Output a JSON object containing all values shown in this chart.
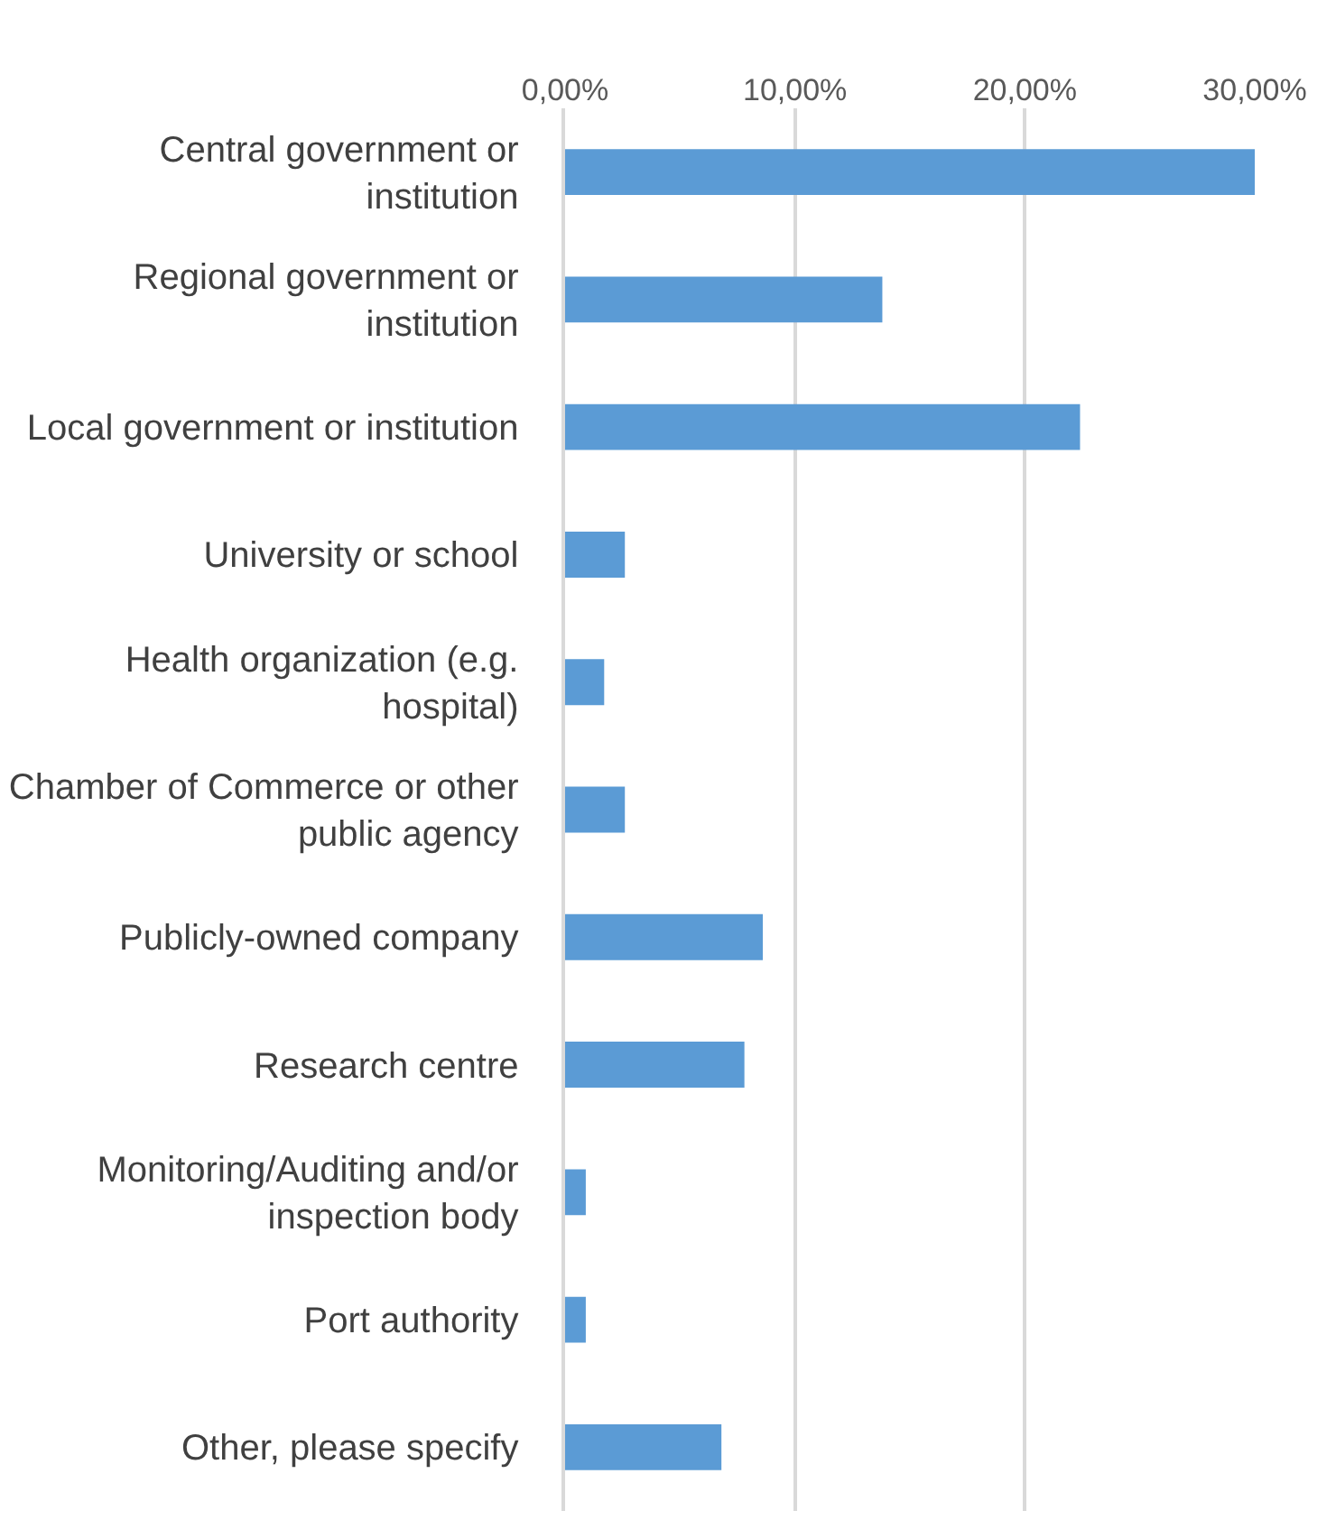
{
  "chart_data": {
    "type": "bar",
    "orientation": "horizontal",
    "categories": [
      "Central government or institution",
      "Regional government or institution",
      "Local government or institution",
      "University or school",
      "Health organization (e.g. hospital)",
      "Chamber of Commerce or other public agency",
      "Publicly-owned company",
      "Research centre",
      "Monitoring/Auditing and/or inspection body",
      "Port authority",
      "Other, please specify"
    ],
    "values": [
      30,
      13.8,
      22.4,
      2.6,
      1.7,
      2.6,
      8.6,
      7.8,
      0.9,
      0.9,
      6.8
    ],
    "color": "#5b9bd5",
    "xlim": [
      0,
      30
    ],
    "xticks": [
      {
        "value": 0,
        "label": "0,00%"
      },
      {
        "value": 10,
        "label": "10,00%"
      },
      {
        "value": 20,
        "label": "20,00%"
      },
      {
        "value": 30,
        "label": "30,00%"
      }
    ],
    "grid": "x"
  }
}
